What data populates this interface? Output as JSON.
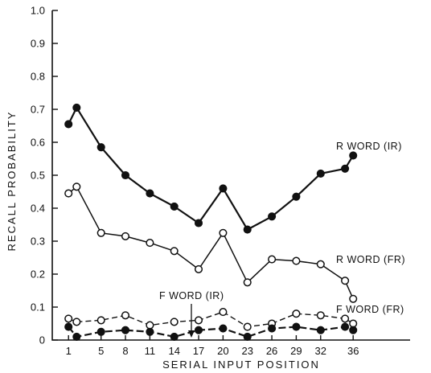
{
  "chart_data": {
    "type": "line",
    "xlabel": "SERIAL INPUT POSITION",
    "ylabel": "RECALL PROBABILITY",
    "ylim": [
      0,
      1.0
    ],
    "yticks": [
      "0",
      "0.1",
      "0.2",
      "0.3",
      "0.4",
      "0.5",
      "0.6",
      "0.7",
      "0.8",
      "0.9",
      "1.0"
    ],
    "xticks": [
      "1",
      "5",
      "8",
      "11",
      "14",
      "17",
      "20",
      "23",
      "26",
      "29",
      "32",
      "36"
    ],
    "grid": false,
    "series": [
      {
        "name": "R WORD (IR)",
        "marker": "filled",
        "style": "solid-bold",
        "x": [
          1,
          2,
          5,
          8,
          11,
          14,
          17,
          20,
          23,
          26,
          29,
          32,
          35,
          36
        ],
        "y": [
          0.655,
          0.705,
          0.585,
          0.5,
          0.445,
          0.405,
          0.355,
          0.46,
          0.335,
          0.375,
          0.435,
          0.505,
          0.52,
          0.56
        ]
      },
      {
        "name": "R WORD (FR)",
        "marker": "open",
        "style": "solid",
        "x": [
          1,
          2,
          5,
          8,
          11,
          14,
          17,
          20,
          23,
          26,
          29,
          32,
          35,
          36
        ],
        "y": [
          0.445,
          0.465,
          0.325,
          0.315,
          0.295,
          0.27,
          0.215,
          0.325,
          0.175,
          0.245,
          0.24,
          0.23,
          0.18,
          0.125
        ]
      },
      {
        "name": "F WORD (FR)",
        "marker": "open",
        "style": "dashed",
        "x": [
          1,
          2,
          5,
          8,
          11,
          14,
          17,
          20,
          23,
          26,
          29,
          32,
          35,
          36
        ],
        "y": [
          0.065,
          0.055,
          0.06,
          0.075,
          0.045,
          0.055,
          0.06,
          0.085,
          0.04,
          0.05,
          0.08,
          0.075,
          0.065,
          0.05
        ]
      },
      {
        "name": "F WORD (IR)",
        "marker": "filled",
        "style": "dashed-bold",
        "x": [
          1,
          2,
          5,
          8,
          11,
          14,
          17,
          20,
          23,
          26,
          29,
          32,
          35,
          36
        ],
        "y": [
          0.04,
          0.01,
          0.025,
          0.03,
          0.025,
          0.01,
          0.03,
          0.035,
          0.01,
          0.035,
          0.04,
          0.03,
          0.04,
          0.03
        ]
      }
    ]
  }
}
